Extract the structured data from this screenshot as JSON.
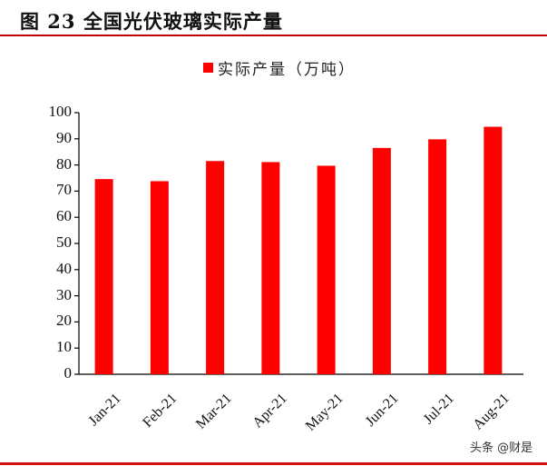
{
  "header": {
    "title": "图 23  全国光伏玻璃实际产量"
  },
  "colors": {
    "bar": "#ff0000",
    "rule": "#c00000",
    "axis": "#000000"
  },
  "watermark": "头条 @财是",
  "chart_data": {
    "type": "bar",
    "title": "图 23 全国光伏玻璃实际产量",
    "xlabel": "",
    "ylabel": "",
    "categories": [
      "Jan-21",
      "Feb-21",
      "Mar-21",
      "Apr-21",
      "May-21",
      "Jun-21",
      "Jul-21",
      "Aug-21"
    ],
    "series": [
      {
        "name": "实际产量（万吨）",
        "values": [
          74.6,
          73.8,
          81.5,
          81.1,
          79.7,
          86.5,
          89.8,
          94.6
        ]
      }
    ],
    "ylim": [
      0,
      100
    ],
    "yticks": [
      0,
      10,
      20,
      30,
      40,
      50,
      60,
      70,
      80,
      90,
      100
    ],
    "grid": false,
    "legend_position": "top"
  }
}
